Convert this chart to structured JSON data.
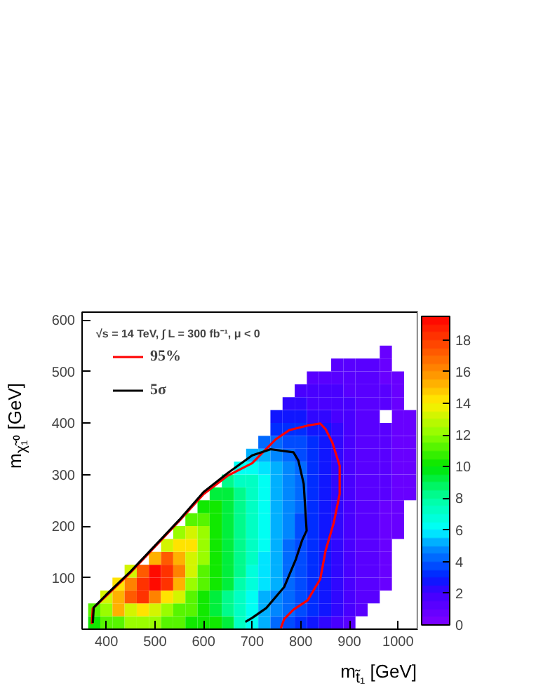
{
  "chart_data": {
    "type": "heatmap",
    "xlabel": "m$_{t̃₁}$ [GeV]",
    "ylabel": "m$_{χ̃₁⁰}$ [GeV]",
    "annotations": [
      "√s = 14 TeV, ∫ L = 300 fb⁻¹, μ < 0"
    ],
    "x": [
      375,
      400,
      425,
      450,
      475,
      500,
      525,
      550,
      575,
      600,
      625,
      650,
      675,
      700,
      725,
      750,
      775,
      800,
      825,
      850,
      875,
      900,
      925,
      950,
      975,
      1000,
      1025
    ],
    "y": [
      12.5,
      37.5,
      62.5,
      87.5,
      112.5,
      137.5,
      162.5,
      187.5,
      212.5,
      237.5,
      262.5,
      287.5,
      312.5,
      337.5,
      362.5,
      387.5,
      412.5,
      437.5,
      462.5,
      487.5,
      512.5,
      537.5
    ],
    "cells": [
      [
        10,
        11,
        11,
        12,
        12,
        12,
        11,
        11,
        10,
        10,
        10,
        9,
        7,
        6,
        5,
        4,
        3.5,
        3,
        2.5,
        2,
        1.5,
        1,
        null,
        null,
        null,
        null,
        null
      ],
      [
        11,
        12,
        15,
        13,
        14,
        13,
        12,
        11,
        11,
        10,
        9,
        8,
        7,
        6,
        5,
        4.5,
        4,
        3.5,
        3,
        2.5,
        2,
        1.5,
        1,
        null,
        null,
        null,
        null
      ],
      [
        null,
        13,
        15,
        17,
        18,
        16,
        14,
        13,
        11,
        10,
        9,
        8,
        7,
        6,
        5,
        4.5,
        4,
        3.5,
        3,
        2.5,
        2,
        1.5,
        1,
        1,
        null,
        null,
        null
      ],
      [
        null,
        null,
        14,
        16,
        18,
        19,
        18,
        15,
        12,
        11,
        10,
        9,
        7.5,
        6.5,
        5.5,
        5,
        4,
        3.5,
        3,
        2.5,
        2,
        1.5,
        1.2,
        1,
        0.8,
        null,
        null
      ],
      [
        null,
        null,
        null,
        13,
        17,
        19,
        18,
        16,
        13,
        11,
        10,
        9,
        8,
        6.5,
        5.5,
        5,
        4,
        3.5,
        3,
        2.5,
        2,
        1.5,
        1.2,
        1,
        0.8,
        null,
        null
      ],
      [
        null,
        null,
        null,
        null,
        null,
        15,
        17,
        15,
        13,
        12,
        10,
        9,
        8,
        7,
        5.5,
        5,
        4,
        3.5,
        3,
        2.5,
        2,
        1.5,
        1.2,
        1,
        0.8,
        null,
        null
      ],
      [
        null,
        null,
        null,
        null,
        null,
        null,
        13,
        14,
        14,
        12,
        10,
        9,
        8,
        7,
        6,
        5,
        4,
        3.5,
        3,
        2.5,
        2,
        1.5,
        1.2,
        1,
        0.8,
        null,
        null
      ],
      [
        null,
        null,
        null,
        null,
        null,
        null,
        null,
        12,
        13,
        12,
        10,
        9,
        8,
        7,
        6,
        5,
        4.5,
        3.5,
        3,
        2.5,
        2,
        1.5,
        1.2,
        1,
        0.8,
        0.8,
        null
      ],
      [
        null,
        null,
        null,
        null,
        null,
        null,
        null,
        null,
        11,
        11,
        10,
        9,
        8,
        7,
        6,
        5,
        4.5,
        3.5,
        3,
        2.5,
        2,
        1.5,
        1.2,
        1,
        0.8,
        0.8,
        null
      ],
      [
        null,
        null,
        null,
        null,
        null,
        null,
        null,
        null,
        null,
        10,
        10,
        9,
        8,
        7,
        6,
        5,
        4.5,
        4,
        3,
        2.5,
        2,
        1.5,
        1.2,
        1,
        0.8,
        0.8,
        null
      ],
      [
        null,
        null,
        null,
        null,
        null,
        null,
        null,
        null,
        null,
        null,
        9,
        9,
        8,
        7,
        6,
        5,
        4.5,
        4,
        3,
        2.5,
        2,
        1.5,
        1.2,
        1,
        1,
        0.8,
        0.8
      ],
      [
        null,
        null,
        null,
        null,
        null,
        null,
        null,
        null,
        null,
        null,
        null,
        8,
        7,
        7,
        6,
        5,
        4.5,
        4,
        3,
        2.5,
        2,
        1.5,
        1.2,
        1,
        1,
        0.8,
        0.8
      ],
      [
        null,
        null,
        null,
        null,
        null,
        null,
        null,
        null,
        null,
        null,
        null,
        null,
        6,
        6,
        5.5,
        5,
        4.5,
        4,
        3,
        2.5,
        2,
        1.5,
        1.2,
        1,
        1,
        0.8,
        0.8
      ],
      [
        null,
        null,
        null,
        null,
        null,
        null,
        null,
        null,
        null,
        null,
        null,
        null,
        null,
        5,
        5,
        4.5,
        4,
        3.5,
        3,
        2.5,
        2,
        1.5,
        1.2,
        1,
        1,
        0.8,
        0.8
      ],
      [
        null,
        null,
        null,
        null,
        null,
        null,
        null,
        null,
        null,
        null,
        null,
        null,
        null,
        null,
        4,
        4,
        3.5,
        3.5,
        3,
        2.5,
        2,
        1.5,
        1.2,
        1,
        1,
        0.8,
        0.8
      ],
      [
        null,
        null,
        null,
        null,
        null,
        null,
        null,
        null,
        null,
        null,
        null,
        null,
        null,
        null,
        null,
        3,
        3,
        3,
        2.5,
        2.5,
        2,
        1.5,
        1.2,
        1,
        1,
        0.8,
        0.8
      ],
      [
        null,
        null,
        null,
        null,
        null,
        null,
        null,
        null,
        null,
        null,
        null,
        null,
        null,
        null,
        null,
        2.5,
        2.5,
        2.5,
        2,
        2,
        1.8,
        1.5,
        1.2,
        1,
        null,
        0.8,
        0.8
      ],
      [
        null,
        null,
        null,
        null,
        null,
        null,
        null,
        null,
        null,
        null,
        null,
        null,
        null,
        null,
        null,
        null,
        2,
        2,
        1.8,
        1.8,
        1.5,
        1.5,
        1.2,
        1,
        1,
        0.8,
        null
      ],
      [
        null,
        null,
        null,
        null,
        null,
        null,
        null,
        null,
        null,
        null,
        null,
        null,
        null,
        null,
        null,
        null,
        null,
        1.5,
        1.5,
        1.5,
        1.5,
        1.2,
        1.2,
        1,
        1,
        0.8,
        null
      ],
      [
        null,
        null,
        null,
        null,
        null,
        null,
        null,
        null,
        null,
        null,
        null,
        null,
        null,
        null,
        null,
        null,
        null,
        null,
        1.2,
        1.2,
        1,
        1,
        1,
        1,
        0.8,
        0.8,
        null
      ],
      [
        null,
        null,
        null,
        null,
        null,
        null,
        null,
        null,
        null,
        null,
        null,
        null,
        null,
        null,
        null,
        null,
        null,
        null,
        null,
        null,
        1,
        1,
        1,
        1,
        0.8,
        null,
        null
      ],
      [
        null,
        null,
        null,
        null,
        null,
        null,
        null,
        null,
        null,
        null,
        null,
        null,
        null,
        null,
        null,
        null,
        null,
        null,
        null,
        null,
        null,
        null,
        null,
        null,
        0.8,
        null,
        null
      ]
    ],
    "clim": [
      0,
      19.5
    ],
    "cticks": [
      0,
      2,
      4,
      6,
      8,
      10,
      12,
      14,
      16,
      18
    ],
    "xlim": [
      350,
      1040
    ],
    "ylim": [
      0,
      615
    ],
    "xticks": [
      400,
      500,
      600,
      700,
      800,
      900,
      1000
    ],
    "yticks": [
      100,
      200,
      300,
      400,
      500,
      600
    ],
    "legend": "top left",
    "series": [
      {
        "name": "95%",
        "type": "line",
        "color": "#ff0000",
        "x": [
          370,
          372,
          400,
          450,
          500,
          550,
          600,
          650,
          700,
          748,
          776,
          814,
          840,
          851,
          865,
          880,
          880,
          868,
          851,
          840,
          814,
          785,
          766,
          759
        ],
        "values": [
          10,
          40,
          65,
          110,
          160,
          210,
          262,
          298,
          322,
          368,
          386,
          395,
          399,
          388,
          362,
          317,
          262,
          207,
          152,
          97,
          56,
          38,
          20,
          2
        ]
      },
      {
        "name": "5σ",
        "type": "line",
        "color": "#000000",
        "x": [
          372,
          374,
          400,
          450,
          500,
          550,
          600,
          650,
          700,
          738,
          785,
          795,
          806,
          812,
          803,
          790,
          766,
          729,
          700,
          686
        ],
        "values": [
          12,
          42,
          67,
          112,
          162,
          212,
          266,
          303,
          337,
          349,
          343,
          327,
          282,
          191,
          173,
          136,
          82,
          41,
          22,
          14
        ]
      }
    ]
  }
}
